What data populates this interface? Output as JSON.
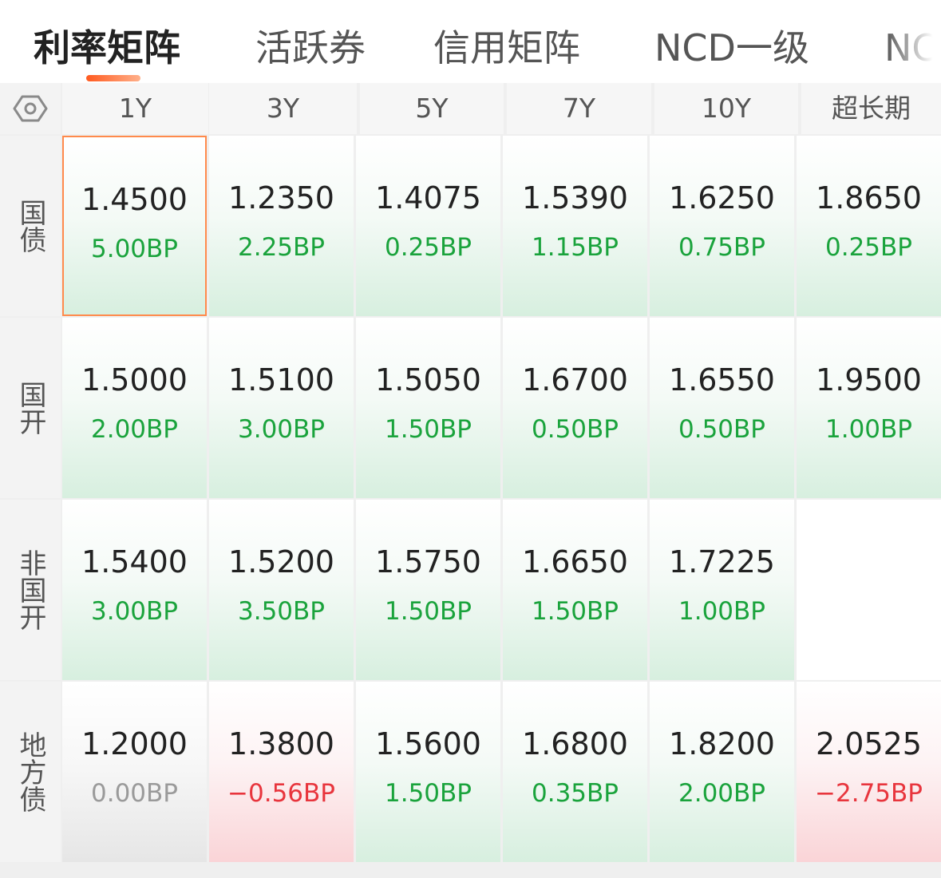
{
  "tabs": [
    {
      "label": "利率矩阵",
      "active": true
    },
    {
      "label": "活跃券",
      "active": false
    },
    {
      "label": "信用矩阵",
      "active": false
    },
    {
      "label": "NCD一级",
      "active": false
    },
    {
      "label": "NC",
      "active": false
    }
  ],
  "grid": {
    "corner_icon": "settings-hexagon-icon",
    "columns": [
      "1Y",
      "3Y",
      "5Y",
      "7Y",
      "10Y",
      "超长期"
    ],
    "rows": [
      {
        "label": "国债",
        "cells": [
          {
            "rate": "1.4500",
            "change": "5.00BP",
            "trend": "up"
          },
          {
            "rate": "1.2350",
            "change": "2.25BP",
            "trend": "up"
          },
          {
            "rate": "1.4075",
            "change": "0.25BP",
            "trend": "up"
          },
          {
            "rate": "1.5390",
            "change": "1.15BP",
            "trend": "up"
          },
          {
            "rate": "1.6250",
            "change": "0.75BP",
            "trend": "up"
          },
          {
            "rate": "1.8650",
            "change": "0.25BP",
            "trend": "up"
          }
        ]
      },
      {
        "label": "国开",
        "cells": [
          {
            "rate": "1.5000",
            "change": "2.00BP",
            "trend": "up"
          },
          {
            "rate": "1.5100",
            "change": "3.00BP",
            "trend": "up"
          },
          {
            "rate": "1.5050",
            "change": "1.50BP",
            "trend": "up"
          },
          {
            "rate": "1.6700",
            "change": "0.50BP",
            "trend": "up"
          },
          {
            "rate": "1.6550",
            "change": "0.50BP",
            "trend": "up"
          },
          {
            "rate": "1.9500",
            "change": "1.00BP",
            "trend": "up"
          }
        ]
      },
      {
        "label": "非国开",
        "cells": [
          {
            "rate": "1.5400",
            "change": "3.00BP",
            "trend": "up"
          },
          {
            "rate": "1.5200",
            "change": "3.50BP",
            "trend": "up"
          },
          {
            "rate": "1.5750",
            "change": "1.50BP",
            "trend": "up"
          },
          {
            "rate": "1.6650",
            "change": "1.50BP",
            "trend": "up"
          },
          {
            "rate": "1.7225",
            "change": "1.00BP",
            "trend": "up"
          },
          {
            "rate": "",
            "change": "",
            "trend": "empty"
          }
        ]
      },
      {
        "label": "地方债",
        "cells": [
          {
            "rate": "1.2000",
            "change": "0.00BP",
            "trend": "flat"
          },
          {
            "rate": "1.3800",
            "change": "−0.56BP",
            "trend": "down"
          },
          {
            "rate": "1.5600",
            "change": "1.50BP",
            "trend": "up"
          },
          {
            "rate": "1.6800",
            "change": "0.35BP",
            "trend": "up"
          },
          {
            "rate": "1.8200",
            "change": "2.00BP",
            "trend": "up"
          },
          {
            "rate": "2.0525",
            "change": "−2.75BP",
            "trend": "down"
          }
        ]
      }
    ]
  },
  "colors": {
    "accent": "#ff5a1f",
    "selected_border": "#ff8a4c",
    "up": "#1aa33c",
    "down": "#e8353d",
    "flat": "#9a9a9a"
  }
}
